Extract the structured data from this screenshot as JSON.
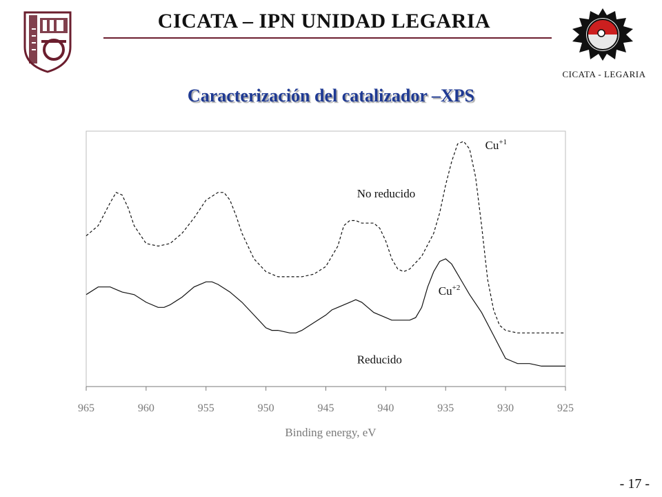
{
  "header": {
    "title": "CICATA – IPN UNIDAD LEGARIA",
    "left_logo_icon": "ipn-shield-logo-icon",
    "right_logo_icon": "cicata-gear-logo-icon",
    "right_logo_caption": "CICATA - LEGARIA",
    "brand_color": "#6b1e2e"
  },
  "slide": {
    "title": "Caracterización del catalizador –XPS",
    "title_color": "#1f3a93",
    "page_number": "- 17 -"
  },
  "chart_data": {
    "type": "line",
    "title": "",
    "xlabel": "Binding energy, eV",
    "ylabel": "",
    "xlim": [
      965,
      925
    ],
    "x_reversed": true,
    "x_ticks": [
      965,
      960,
      955,
      950,
      945,
      940,
      935,
      930,
      925
    ],
    "y_ticks": [],
    "ylim": [
      0,
      1
    ],
    "grid": false,
    "legend": "none",
    "annotations": {
      "cu1_label": "Cu",
      "cu1_sup": "+1",
      "cu1_x": 931.7,
      "cu1_y": 0.93,
      "cu2_label": "Cu",
      "cu2_sup": "+2",
      "cu2_x": 935.6,
      "cu2_y": 0.36,
      "no_reducido_label": "No reducido",
      "no_reducido_x": 942.4,
      "no_reducido_y": 0.74,
      "reducido_label": "Reducido",
      "reducido_x": 942.4,
      "reducido_y": 0.09
    },
    "series": [
      {
        "style": "dashed",
        "color": "#111111",
        "x": [
          965,
          964,
          963,
          962.5,
          962,
          961.5,
          961,
          960,
          959,
          958,
          957,
          956,
          955,
          954,
          953.5,
          953,
          952.5,
          952,
          951,
          950,
          949,
          948,
          947,
          946,
          945,
          944,
          943.5,
          943,
          942.5,
          942,
          941.5,
          941,
          940.5,
          940,
          939.5,
          939,
          938.5,
          938,
          937,
          936,
          935.5,
          935,
          934.5,
          934,
          933.5,
          933,
          932.5,
          932,
          931.5,
          931,
          930.5,
          930,
          929,
          928,
          927,
          926,
          925
        ],
        "y": [
          0.59,
          0.63,
          0.72,
          0.76,
          0.75,
          0.7,
          0.63,
          0.56,
          0.55,
          0.56,
          0.6,
          0.66,
          0.73,
          0.76,
          0.76,
          0.73,
          0.67,
          0.6,
          0.5,
          0.45,
          0.43,
          0.43,
          0.43,
          0.44,
          0.47,
          0.55,
          0.63,
          0.65,
          0.65,
          0.64,
          0.64,
          0.64,
          0.62,
          0.57,
          0.5,
          0.46,
          0.45,
          0.46,
          0.51,
          0.6,
          0.68,
          0.79,
          0.88,
          0.95,
          0.96,
          0.93,
          0.82,
          0.63,
          0.42,
          0.3,
          0.24,
          0.22,
          0.21,
          0.21,
          0.21,
          0.21,
          0.21
        ]
      },
      {
        "style": "solid",
        "color": "#111111",
        "x": [
          965,
          964,
          963,
          962.5,
          962,
          961,
          960,
          959,
          958.5,
          958,
          957,
          956,
          955,
          954.5,
          954,
          953,
          952,
          951,
          950,
          949.5,
          949,
          948,
          947.5,
          947,
          946,
          945,
          944.5,
          944,
          943,
          942.5,
          942,
          941.5,
          941,
          940,
          939.5,
          939,
          938,
          937.5,
          937,
          936.5,
          936,
          935.5,
          935,
          934.5,
          934,
          933.5,
          933,
          932,
          931,
          930,
          929.5,
          929,
          928,
          927,
          926,
          925
        ],
        "y": [
          0.36,
          0.39,
          0.39,
          0.38,
          0.37,
          0.36,
          0.33,
          0.31,
          0.31,
          0.32,
          0.35,
          0.39,
          0.41,
          0.41,
          0.4,
          0.37,
          0.33,
          0.28,
          0.23,
          0.22,
          0.22,
          0.21,
          0.21,
          0.22,
          0.25,
          0.28,
          0.3,
          0.31,
          0.33,
          0.34,
          0.33,
          0.31,
          0.29,
          0.27,
          0.26,
          0.26,
          0.26,
          0.27,
          0.31,
          0.39,
          0.45,
          0.49,
          0.5,
          0.48,
          0.44,
          0.4,
          0.36,
          0.29,
          0.2,
          0.11,
          0.1,
          0.09,
          0.09,
          0.08,
          0.08,
          0.08
        ]
      }
    ]
  }
}
